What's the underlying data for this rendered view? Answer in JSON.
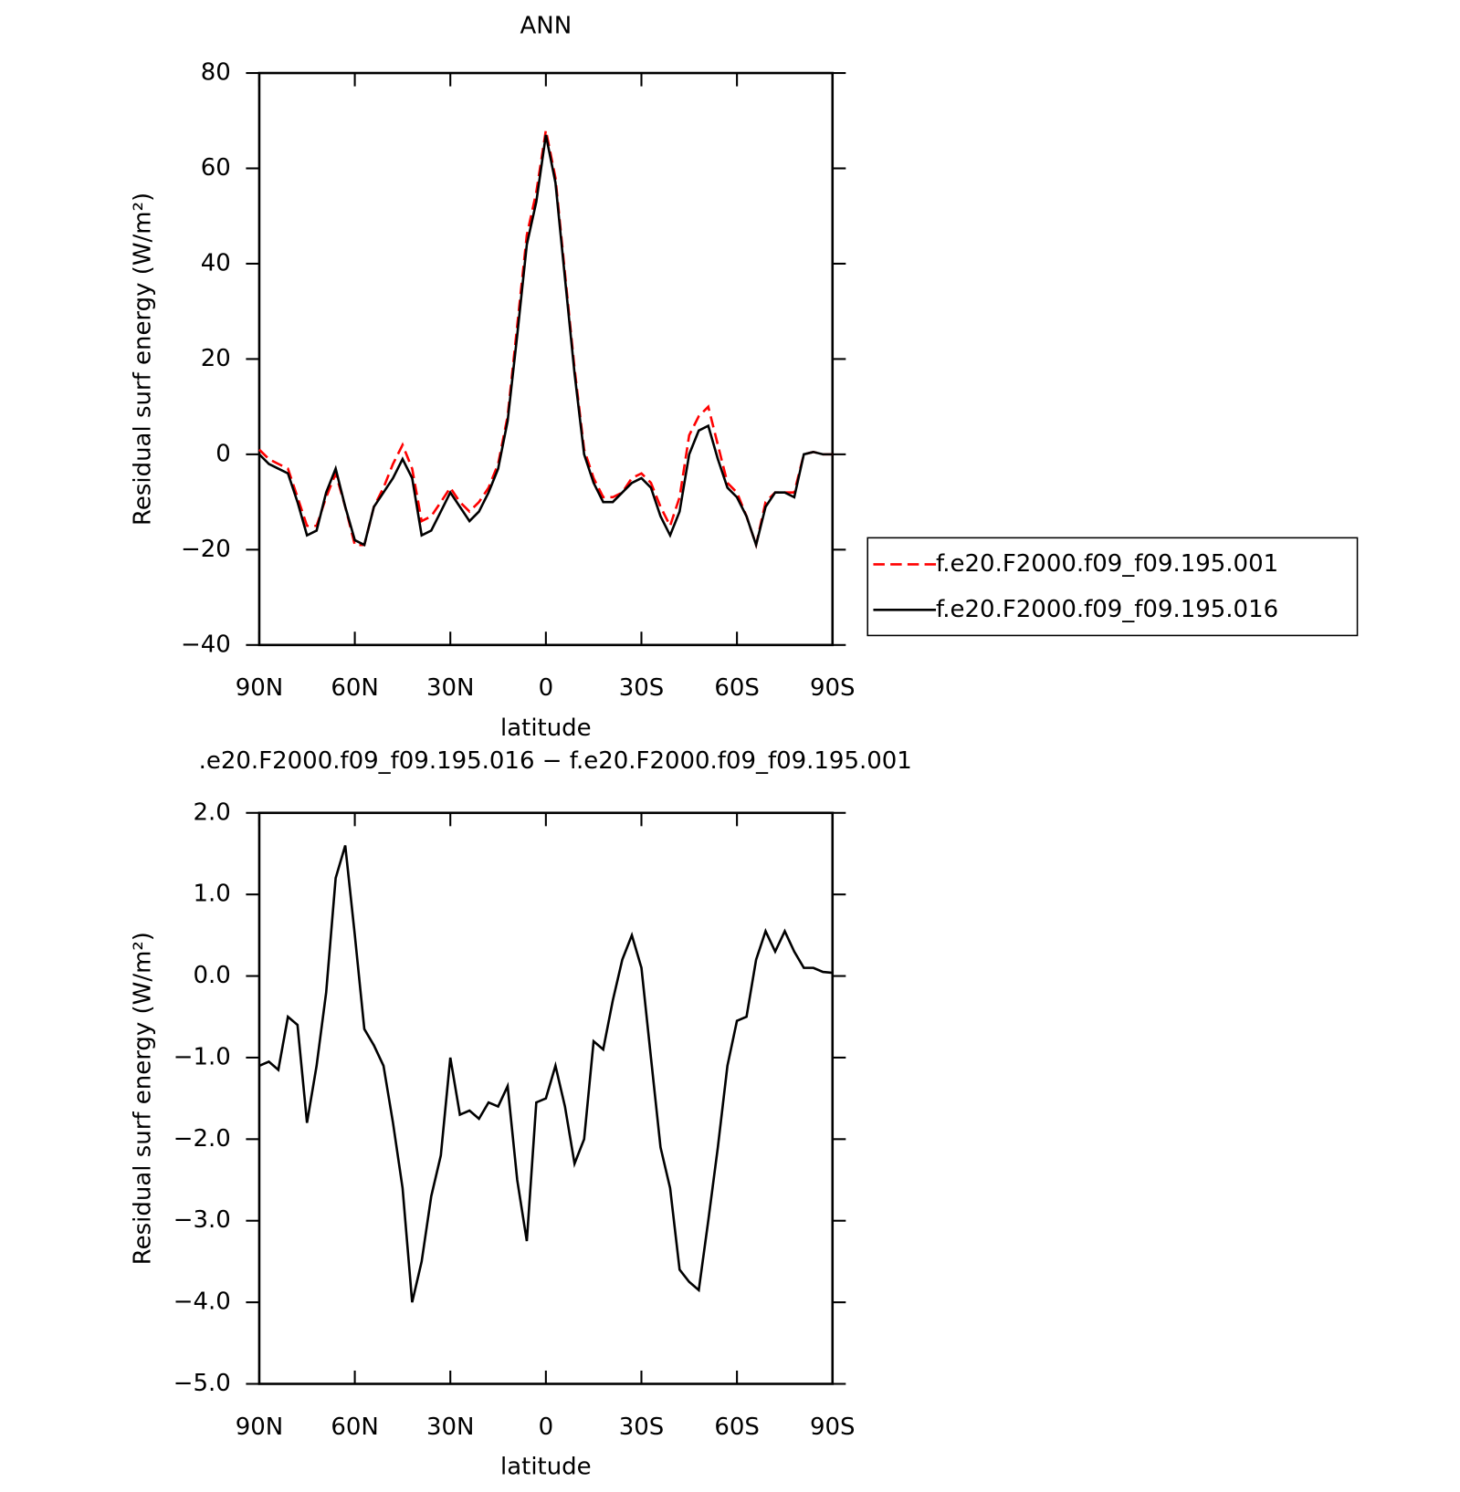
{
  "chart_data": [
    {
      "type": "line",
      "title": "ANN",
      "xlabel": "latitude",
      "ylabel": "Residual surf energy (W/m²)",
      "legend": "right",
      "x": [
        90,
        87,
        84,
        81,
        78,
        75,
        72,
        69,
        66,
        63,
        60,
        57,
        54,
        51,
        48,
        45,
        42,
        39,
        36,
        33,
        30,
        27,
        24,
        21,
        18,
        15,
        12,
        9,
        6,
        3,
        0,
        -3,
        -6,
        -9,
        -12,
        -15,
        -18,
        -21,
        -24,
        -27,
        -30,
        -33,
        -36,
        -39,
        -42,
        -45,
        -48,
        -51,
        -54,
        -57,
        -60,
        -63,
        -66,
        -69,
        -72,
        -75,
        -78,
        -81,
        -84,
        -87,
        -90
      ],
      "series": [
        {
          "name": "f.e20.F2000.f09_f09.195.001",
          "color": "#ff0000",
          "dash": "dashed",
          "values": [
            1,
            -1,
            -2,
            -3,
            -9,
            -15,
            -15,
            -9,
            -4,
            -11,
            -19,
            -19,
            -11,
            -7,
            -2,
            2,
            -3,
            -14,
            -13,
            -10,
            -7,
            -10,
            -12,
            -10,
            -7,
            -2,
            8,
            27,
            46,
            55,
            68,
            58,
            38,
            18,
            1,
            -5,
            -9,
            -9,
            -8,
            -5,
            -4,
            -6,
            -11,
            -15,
            -9,
            4,
            8,
            10,
            2,
            -6,
            -8,
            -13,
            -19,
            -10,
            -8,
            -8,
            -8,
            0,
            0.5,
            0,
            0
          ]
        },
        {
          "name": "f.e20.F2000.f09_f09.195.016",
          "color": "#000000",
          "dash": "solid",
          "values": [
            0,
            -2,
            -3,
            -4,
            -10,
            -17,
            -16,
            -8,
            -3,
            -11,
            -18,
            -19,
            -11,
            -8,
            -5,
            -1,
            -5,
            -17,
            -16,
            -12,
            -8,
            -11,
            -14,
            -12,
            -8,
            -3,
            7,
            25,
            44,
            53,
            67,
            57,
            37,
            17,
            0,
            -6,
            -10,
            -10,
            -8,
            -6,
            -5,
            -7,
            -13,
            -17,
            -12,
            0,
            5,
            6,
            -1,
            -7,
            -9,
            -13,
            -19,
            -11,
            -8,
            -8,
            -9,
            0,
            0.5,
            0,
            0
          ]
        }
      ],
      "xlim": [
        90,
        -90
      ],
      "xticks": [
        {
          "value": 90,
          "label": "90N"
        },
        {
          "value": 60,
          "label": "60N"
        },
        {
          "value": 30,
          "label": "30N"
        },
        0,
        {
          "value": -30,
          "label": "30S"
        },
        {
          "value": -60,
          "label": "60S"
        },
        {
          "value": -90,
          "label": "90S"
        }
      ],
      "ylim": [
        -40,
        80
      ],
      "yticks": [
        {
          "value": -40,
          "label": "−40"
        },
        {
          "value": -20,
          "label": "−20"
        },
        0,
        20,
        40,
        60,
        80
      ]
    },
    {
      "type": "line",
      "title": ".e20.F2000.f09_f09.195.016 − f.e20.F2000.f09_f09.195.001",
      "xlabel": "latitude",
      "ylabel": "Residual surf energy (W/m²)",
      "x": [
        90,
        87,
        84,
        81,
        78,
        75,
        72,
        69,
        66,
        63,
        60,
        57,
        54,
        51,
        48,
        45,
        42,
        39,
        36,
        33,
        30,
        27,
        24,
        21,
        18,
        15,
        12,
        9,
        6,
        3,
        0,
        -3,
        -6,
        -9,
        -12,
        -15,
        -18,
        -21,
        -24,
        -27,
        -30,
        -33,
        -36,
        -39,
        -42,
        -45,
        -48,
        -51,
        -54,
        -57,
        -60,
        -63,
        -66,
        -69,
        -72,
        -75,
        -78,
        -81,
        -84,
        -87,
        -90
      ],
      "series": [
        {
          "color": "#000000",
          "dash": "solid",
          "values": [
            -1.1,
            -1.05,
            -1.15,
            -0.5,
            -0.6,
            -1.8,
            -1.1,
            -0.2,
            1.2,
            1.6,
            0.5,
            -0.65,
            -0.85,
            -1.1,
            -1.8,
            -2.6,
            -4.0,
            -3.5,
            -2.7,
            -2.2,
            -1.0,
            -1.7,
            -1.65,
            -1.75,
            -1.55,
            -1.6,
            -1.35,
            -2.5,
            -3.25,
            -1.55,
            -1.5,
            -1.1,
            -1.6,
            -2.3,
            -2.0,
            -0.8,
            -0.9,
            -0.3,
            0.2,
            0.5,
            0.1,
            -1.0,
            -2.1,
            -2.6,
            -3.6,
            -3.75,
            -3.85,
            -3.0,
            -2.1,
            -1.1,
            -0.55,
            -0.5,
            0.2,
            0.55,
            0.3,
            0.55,
            0.3,
            0.1,
            0.1,
            0.05,
            0.04
          ]
        }
      ],
      "xlim": [
        90,
        -90
      ],
      "xticks": [
        {
          "value": 90,
          "label": "90N"
        },
        {
          "value": 60,
          "label": "60N"
        },
        {
          "value": 30,
          "label": "30N"
        },
        0,
        {
          "value": -30,
          "label": "30S"
        },
        {
          "value": -60,
          "label": "60S"
        },
        {
          "value": -90,
          "label": "90S"
        }
      ],
      "ylim": [
        -5,
        2
      ],
      "yticks": [
        {
          "value": -5,
          "label": "−5.0"
        },
        {
          "value": -4,
          "label": "−4.0"
        },
        {
          "value": -3,
          "label": "−3.0"
        },
        {
          "value": -2,
          "label": "−2.0"
        },
        {
          "value": -1,
          "label": "−1.0"
        },
        {
          "value": 0,
          "label": "0.0"
        },
        {
          "value": 1,
          "label": "1.0"
        },
        {
          "value": 2,
          "label": "2.0"
        }
      ]
    }
  ]
}
